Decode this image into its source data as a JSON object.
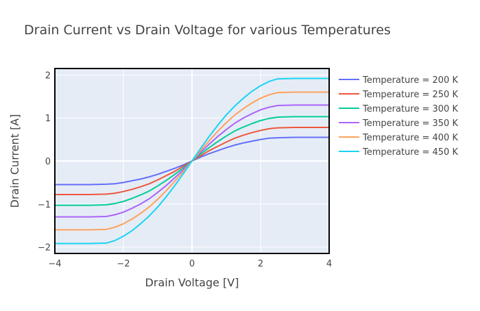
{
  "chart_data": {
    "type": "line",
    "title": "Drain Current vs Drain Voltage for various Temperatures",
    "xlabel": "Drain Voltage [V]",
    "ylabel": "Drain Current [A]",
    "xlim": [
      -4,
      4
    ],
    "ylim": [
      -2.15,
      2.15
    ],
    "xticks": [
      -4,
      -2,
      0,
      2,
      4
    ],
    "yticks": [
      -2,
      -1,
      0,
      1,
      2
    ],
    "xtick_labels": [
      "−4",
      "−2",
      "0",
      "2",
      "4"
    ],
    "ytick_labels": [
      "−2",
      "−1",
      "0",
      "1",
      "2"
    ],
    "grid": true,
    "legend_position": "right",
    "colors": {
      "plot_bg": "#e5ecf6",
      "grid": "#ffffff",
      "axis_text": "#444444",
      "title_text": "#444444"
    },
    "x": [
      -4.0,
      -3.5,
      -3.0,
      -2.5,
      -2.25,
      -2.0,
      -1.75,
      -1.5,
      -1.25,
      -1.0,
      -0.75,
      -0.5,
      -0.25,
      0.0,
      0.25,
      0.5,
      0.75,
      1.0,
      1.25,
      1.5,
      1.75,
      2.0,
      2.25,
      2.5,
      3.0,
      3.5,
      4.0
    ],
    "series": [
      {
        "name": "Temperature = 200 K",
        "color": "#636efa",
        "values": [
          -0.55,
          -0.55,
          -0.55,
          -0.54,
          -0.53,
          -0.5,
          -0.46,
          -0.42,
          -0.37,
          -0.31,
          -0.24,
          -0.17,
          -0.09,
          0.0,
          0.09,
          0.17,
          0.24,
          0.31,
          0.37,
          0.42,
          0.46,
          0.5,
          0.53,
          0.54,
          0.55,
          0.55,
          0.55
        ]
      },
      {
        "name": "Temperature = 250 K",
        "color": "#EF553B",
        "values": [
          -0.78,
          -0.78,
          -0.78,
          -0.77,
          -0.75,
          -0.71,
          -0.66,
          -0.6,
          -0.53,
          -0.44,
          -0.34,
          -0.24,
          -0.12,
          0.0,
          0.12,
          0.24,
          0.34,
          0.44,
          0.53,
          0.6,
          0.66,
          0.71,
          0.75,
          0.77,
          0.78,
          0.78,
          0.78
        ]
      },
      {
        "name": "Temperature = 300 K",
        "color": "#00cc96",
        "values": [
          -1.03,
          -1.03,
          -1.03,
          -1.02,
          -0.99,
          -0.94,
          -0.87,
          -0.79,
          -0.7,
          -0.58,
          -0.45,
          -0.31,
          -0.16,
          0.0,
          0.16,
          0.31,
          0.45,
          0.58,
          0.7,
          0.79,
          0.87,
          0.94,
          0.99,
          1.02,
          1.03,
          1.03,
          1.03
        ]
      },
      {
        "name": "Temperature = 350 K",
        "color": "#ab63fa",
        "values": [
          -1.3,
          -1.3,
          -1.3,
          -1.29,
          -1.25,
          -1.19,
          -1.1,
          -1.0,
          -0.88,
          -0.73,
          -0.57,
          -0.39,
          -0.2,
          0.0,
          0.2,
          0.39,
          0.57,
          0.73,
          0.88,
          1.0,
          1.1,
          1.19,
          1.25,
          1.29,
          1.3,
          1.3,
          1.3
        ]
      },
      {
        "name": "Temperature = 400 K",
        "color": "#FFA15A",
        "values": [
          -1.6,
          -1.6,
          -1.6,
          -1.59,
          -1.54,
          -1.46,
          -1.35,
          -1.22,
          -1.07,
          -0.89,
          -0.69,
          -0.47,
          -0.24,
          0.0,
          0.24,
          0.47,
          0.69,
          0.89,
          1.07,
          1.22,
          1.35,
          1.46,
          1.54,
          1.59,
          1.6,
          1.6,
          1.6
        ]
      },
      {
        "name": "Temperature = 450 K",
        "color": "#19d3f3",
        "values": [
          -1.92,
          -1.92,
          -1.92,
          -1.91,
          -1.85,
          -1.75,
          -1.62,
          -1.46,
          -1.28,
          -1.07,
          -0.83,
          -0.57,
          -0.29,
          0.0,
          0.29,
          0.57,
          0.83,
          1.07,
          1.28,
          1.46,
          1.62,
          1.75,
          1.85,
          1.91,
          1.92,
          1.92,
          1.92
        ]
      }
    ]
  }
}
